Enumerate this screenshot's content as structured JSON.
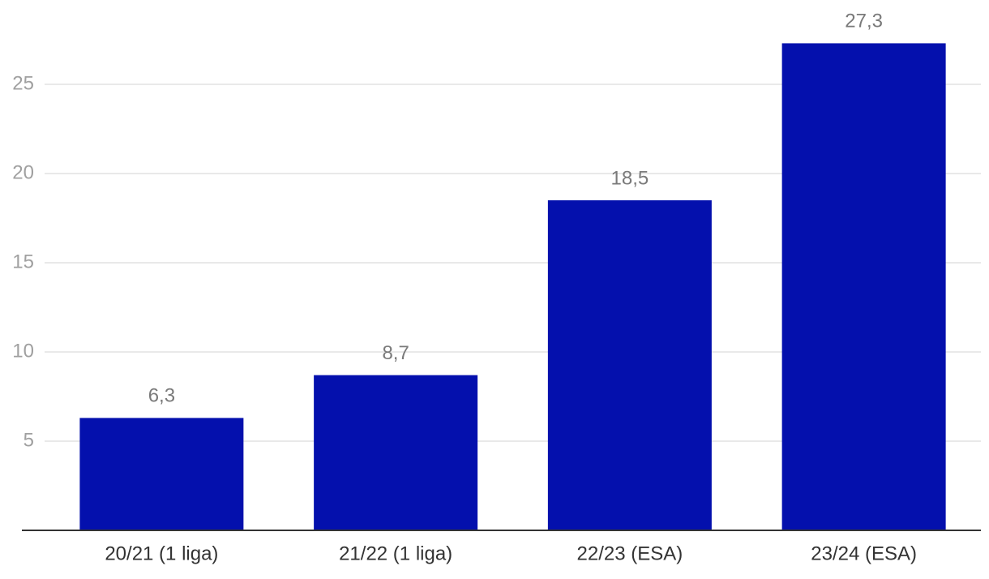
{
  "chart_data": {
    "type": "bar",
    "categories": [
      "20/21 (1 liga)",
      "21/22 (1 liga)",
      "22/23 (ESA)",
      "23/24 (ESA)"
    ],
    "values": [
      6.3,
      8.7,
      18.5,
      27.3
    ],
    "value_labels": [
      "6,3",
      "8,7",
      "18,5",
      "27,3"
    ],
    "color": "#0410ad",
    "ylim": [
      0,
      29.7
    ],
    "yticks": [
      5,
      10,
      15,
      20,
      25
    ],
    "grid": true
  }
}
